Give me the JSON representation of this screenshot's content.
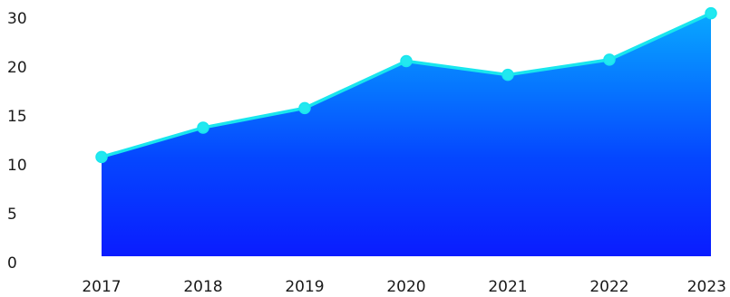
{
  "chart_data": {
    "type": "area",
    "x": [
      "2017",
      "2018",
      "2019",
      "2020",
      "2021",
      "2022",
      "2023"
    ],
    "series": [
      {
        "values": [
          10.8,
          13.8,
          15.8,
          21.2,
          19.2,
          21.5,
          31.0
        ]
      }
    ],
    "y_ticks": [
      "0",
      "5",
      "10",
      "15",
      "20",
      "30"
    ],
    "ylim": [
      0,
      30
    ],
    "grid": false,
    "legend": "none",
    "title": "",
    "xlabel": "",
    "ylabel": "",
    "colors": {
      "line": "#19e6ee",
      "marker": "#22e8f0",
      "fill_top": "#08a8ff",
      "fill_mid": "#0546ff",
      "fill_bottom": "#0a1cff",
      "tick_text": "#1a1a1a"
    }
  }
}
